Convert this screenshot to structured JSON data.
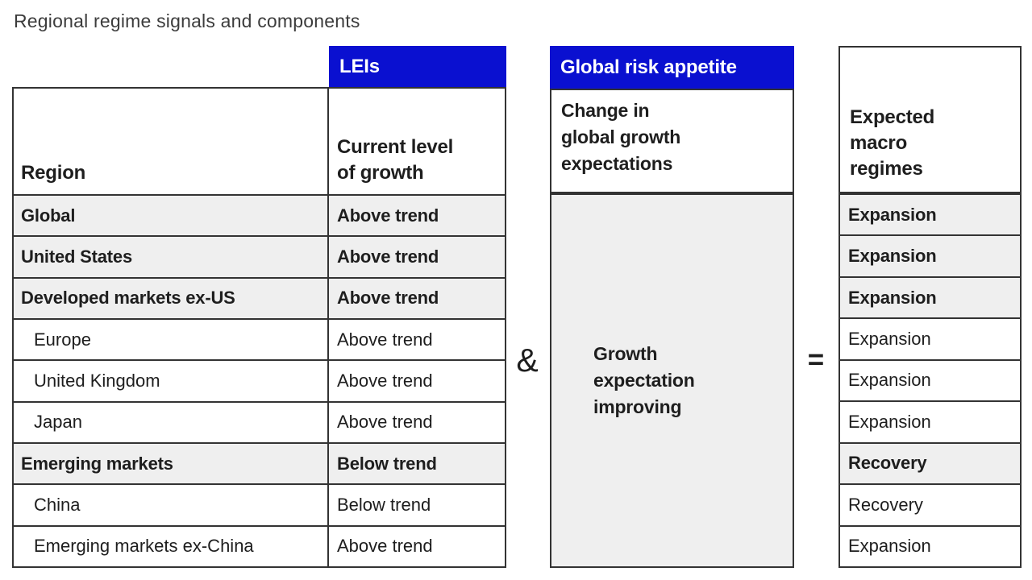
{
  "title": "Regional regime signals and components",
  "colors": {
    "accent_blue": "#0a10d0",
    "row_gray": "#efefef",
    "border_dark": "#333333",
    "text_dark": "#1e1e1e",
    "title_gray": "#3c3c3c"
  },
  "headers": {
    "leis": "LEIs",
    "global_risk_appetite": "Global risk appetite",
    "region": "Region",
    "current_level": "Current level\nof growth",
    "change_expectations": "Change in\nglobal growth\nexpectations",
    "expected_regimes": "Expected\nmacro\nregimes"
  },
  "operators": {
    "and": "&",
    "equals": "="
  },
  "middle_note": "Growth\nexpectation\nimproving",
  "rows": [
    {
      "region": "Global",
      "growth": "Above trend",
      "regime": "Expansion",
      "emphasis": true
    },
    {
      "region": "United States",
      "growth": "Above trend",
      "regime": "Expansion",
      "emphasis": true
    },
    {
      "region": "Developed markets ex-US",
      "growth": "Above trend",
      "regime": "Expansion",
      "emphasis": true
    },
    {
      "region": "Europe",
      "growth": "Above trend",
      "regime": "Expansion",
      "emphasis": false
    },
    {
      "region": "United Kingdom",
      "growth": "Above trend",
      "regime": "Expansion",
      "emphasis": false
    },
    {
      "region": "Japan",
      "growth": "Above trend",
      "regime": "Expansion",
      "emphasis": false
    },
    {
      "region": "Emerging markets",
      "growth": "Below trend",
      "regime": "Recovery",
      "emphasis": true
    },
    {
      "region": "China",
      "growth": "Below trend",
      "regime": "Recovery",
      "emphasis": false
    },
    {
      "region": "Emerging markets ex-China",
      "growth": "Above trend",
      "regime": "Expansion",
      "emphasis": false
    }
  ]
}
